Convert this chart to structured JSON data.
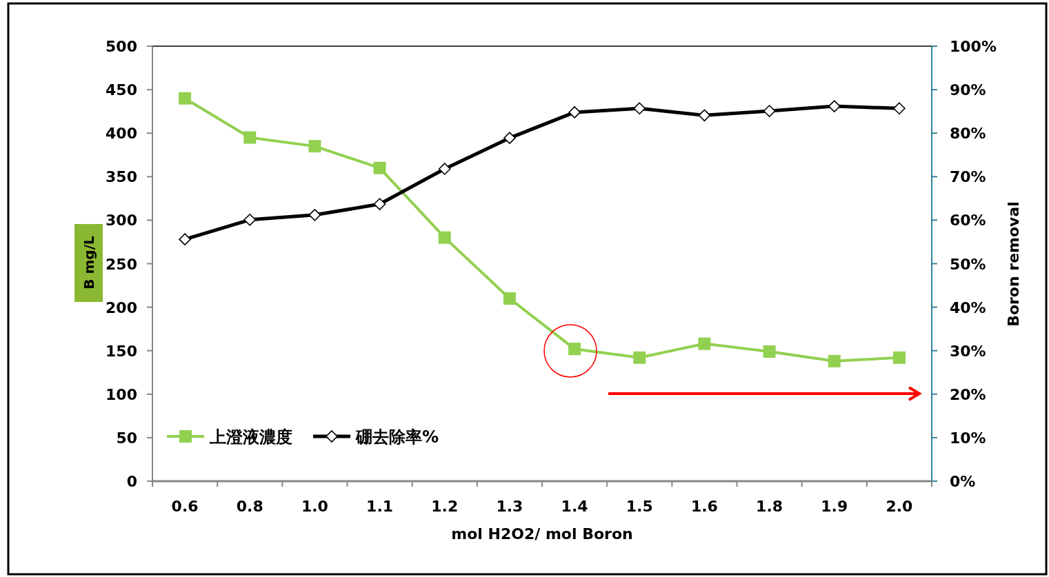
{
  "chart_data": {
    "type": "line",
    "xlabel": "mol H2O2/ mol Boron",
    "ylabel": "B  mg/L",
    "y2label": "Boron removal",
    "categories": [
      "0.6",
      "0.8",
      "1.0",
      "1.1",
      "1.2",
      "1.3",
      "1.4",
      "1.5",
      "1.6",
      "1.8",
      "1.9",
      "2.0"
    ],
    "ylim": [
      0,
      500
    ],
    "yticks": [
      0,
      50,
      100,
      150,
      200,
      250,
      300,
      350,
      400,
      450,
      500
    ],
    "y2lim": [
      0,
      100
    ],
    "y2ticks": [
      {
        "value": 0,
        "label": "0%"
      },
      {
        "value": 10,
        "label": "10%"
      },
      {
        "value": 20,
        "label": "20%"
      },
      {
        "value": 30,
        "label": "30%"
      },
      {
        "value": 40,
        "label": "40%"
      },
      {
        "value": 50,
        "label": "50%"
      },
      {
        "value": 60,
        "label": "60%"
      },
      {
        "value": 70,
        "label": "70%"
      },
      {
        "value": 80,
        "label": "80%"
      },
      {
        "value": 90,
        "label": "90%"
      },
      {
        "value": 100,
        "label": "100%"
      }
    ],
    "legend": "bottom left",
    "series": [
      {
        "name": "上澄液濃度",
        "color": "#92d050",
        "marker": "square",
        "values": [
          440,
          395,
          385,
          360,
          280,
          210,
          152,
          142,
          158,
          149,
          138,
          142
        ]
      },
      {
        "name": "硼去除率%",
        "color": "#000000",
        "marker": "diamond",
        "axis": "y2",
        "values": [
          55.6,
          60.1,
          61.2,
          63.7,
          71.8,
          78.9,
          84.8,
          85.7,
          84.1,
          85.1,
          86.2,
          85.7
        ]
      }
    ]
  }
}
